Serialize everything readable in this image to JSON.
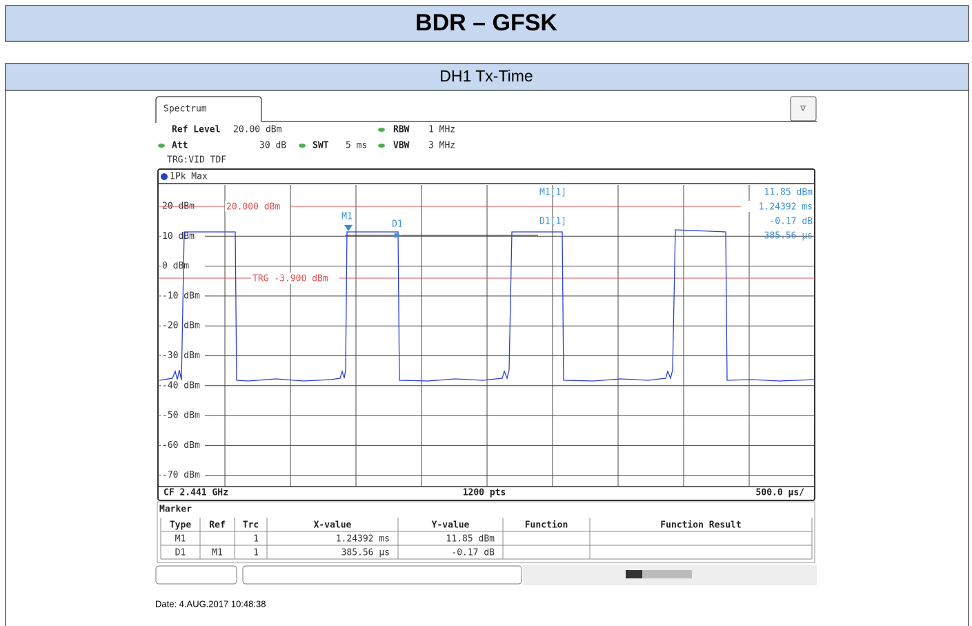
{
  "header": {
    "title": "BDR – GFSK"
  },
  "section": {
    "title": "DH1 Tx-Time"
  },
  "analyzer": {
    "tab": "Spectrum",
    "settings": {
      "ref_level_label": "Ref Level",
      "ref_level": "20.00 dBm",
      "att_label": "Att",
      "att": "30 dB",
      "swt_label": "SWT",
      "swt": "5 ms",
      "rbw_label": "RBW",
      "rbw": "1 MHz",
      "vbw_label": "VBW",
      "vbw": "3 MHz",
      "trigger": "TRG:VID TDF"
    },
    "trace_label": "1Pk Max",
    "y_labels": [
      "20 dBm",
      "10 dBm",
      "0 dBm",
      "-10 dBm",
      "-20 dBm",
      "-30 dBm",
      "-40 dBm",
      "-50 dBm",
      "-60 dBm",
      "-70 dBm"
    ],
    "ref_line": "20.000 dBm",
    "trigger_line": "TRG -3.900 dBm",
    "markers": [
      "M1",
      "D1"
    ],
    "marker_info": {
      "m1_name": "M1[1]",
      "m1_y": "11.85 dBm",
      "m1_x": "1.24392 ms",
      "d1_name": "D1[1]",
      "d1_y": "-0.17 dB",
      "d1_x": "385.56 µs"
    },
    "footer": {
      "center_freq": "CF 2.441 GHz",
      "points": "1200 pts",
      "span": "500.0 µs/"
    },
    "marker_table": {
      "title": "Marker",
      "columns": [
        "Type",
        "Ref",
        "Trc",
        "X-value",
        "Y-value",
        "Function",
        "Function Result"
      ],
      "rows": [
        [
          "M1",
          "",
          "1",
          "1.24392 ms",
          "11.85 dBm",
          "",
          ""
        ],
        [
          "D1",
          "M1",
          "1",
          "385.56 µs",
          "-0.17 dB",
          "",
          ""
        ]
      ]
    }
  },
  "date": "Date: 4.AUG.2017 10:48:38"
}
